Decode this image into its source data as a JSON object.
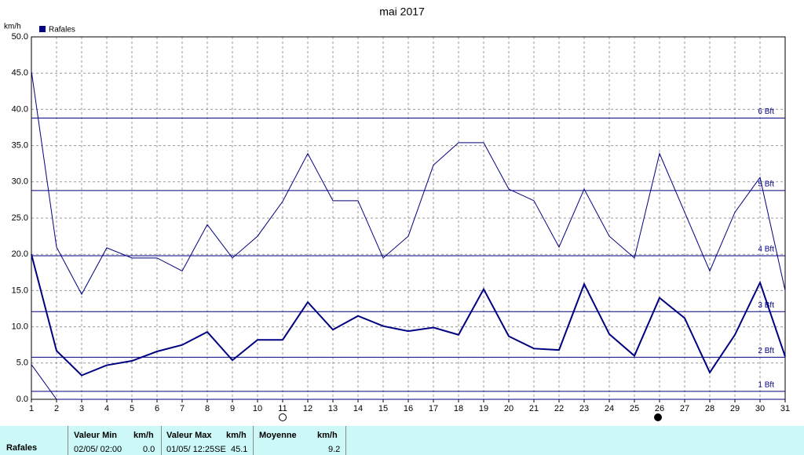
{
  "chart_data": {
    "type": "line",
    "title": "mai 2017",
    "y_label": "km/h",
    "categories": [
      "1",
      "2",
      "3",
      "4",
      "5",
      "6",
      "7",
      "8",
      "9",
      "10",
      "11",
      "12",
      "13",
      "14",
      "15",
      "16",
      "17",
      "18",
      "19",
      "20",
      "21",
      "22",
      "23",
      "24",
      "25",
      "26",
      "27",
      "28",
      "29",
      "30",
      "31"
    ],
    "series": [
      {
        "color": "#000080",
        "width": 1,
        "values": [
          45.3,
          21.0,
          14.5,
          20.9,
          19.5,
          19.5,
          17.7,
          24.1,
          19.5,
          22.5,
          27.3,
          33.9,
          27.4,
          27.4,
          19.5,
          22.5,
          32.3,
          35.4,
          35.4,
          29.0,
          27.4,
          21.0,
          29.0,
          22.5,
          19.5,
          33.9,
          25.8,
          17.7,
          25.8,
          30.6,
          15.0
        ]
      },
      {
        "name": "Rafales",
        "color": "#000080",
        "width": 2,
        "values": [
          20.0,
          6.7,
          3.3,
          4.7,
          5.3,
          6.6,
          7.5,
          9.3,
          5.4,
          8.2,
          8.2,
          13.4,
          9.6,
          11.5,
          10.1,
          9.4,
          9.9,
          8.9,
          15.2,
          8.7,
          7.0,
          6.8,
          15.9,
          9.0,
          6.0,
          14.0,
          11.2,
          3.7,
          8.9,
          16.1,
          5.9
        ]
      },
      {
        "color": "#000080",
        "width": 1,
        "values": [
          4.8,
          0,
          0,
          0,
          0,
          0,
          0,
          0,
          0,
          0,
          0,
          0,
          0,
          0,
          0,
          0,
          0,
          0,
          0,
          0,
          0,
          0,
          0,
          0,
          0,
          0,
          0,
          0,
          0,
          0,
          0
        ]
      }
    ],
    "ylim": [
      0,
      50
    ],
    "yticks": [
      {
        "value": 0,
        "label": "0.0"
      },
      {
        "value": 5,
        "label": "5.0"
      },
      {
        "value": 10,
        "label": "10.0"
      },
      {
        "value": 15,
        "label": "15.0"
      },
      {
        "value": 20,
        "label": "20.0"
      },
      {
        "value": 25,
        "label": "25.0"
      },
      {
        "value": 30,
        "label": "30.0"
      },
      {
        "value": 35,
        "label": "35.0"
      },
      {
        "value": 40,
        "label": "40.0"
      },
      {
        "value": 45,
        "label": "45.0"
      },
      {
        "value": 50,
        "label": "50.0"
      }
    ],
    "grid": true,
    "reference_lines": [
      {
        "value": 1.1,
        "label": "1 Bft"
      },
      {
        "value": 5.8,
        "label": "2 Bft"
      },
      {
        "value": 12.1,
        "label": "3 Bft"
      },
      {
        "value": 19.8,
        "label": "4 Bft"
      },
      {
        "value": 28.8,
        "label": "5 Bft"
      },
      {
        "value": 38.8,
        "label": "6 Bft"
      }
    ]
  },
  "stats": {
    "row_label": "Rafales",
    "headers": [
      "Valeur Min",
      "km/h",
      "Valeur Max",
      "km/h",
      "Moyenne",
      "km/h"
    ],
    "min_date": "02/05/ 02:00",
    "min_value": "0.0",
    "max_date": "01/05/ 12:25SE",
    "max_value": "45.1",
    "mean": "9.2"
  }
}
